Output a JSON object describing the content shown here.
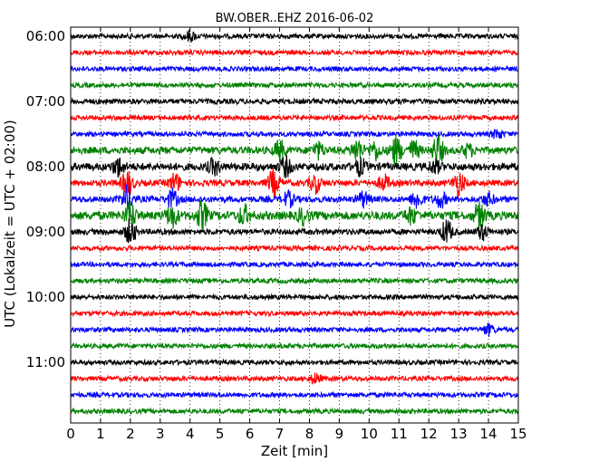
{
  "chart_data": {
    "type": "line",
    "title": "BW.OBER..EHZ 2016-06-02",
    "xlabel": "Zeit  [min]",
    "ylabel": "UTC (Lokalzeit = UTC + 02:00)",
    "xlim": [
      0,
      15
    ],
    "x_ticks": [
      "0",
      "1",
      "2",
      "3",
      "4",
      "5",
      "6",
      "7",
      "8",
      "9",
      "10",
      "11",
      "12",
      "13",
      "14",
      "15"
    ],
    "y_ticks": [
      "06:00",
      "07:00",
      "08:00",
      "09:00",
      "10:00",
      "11:00"
    ],
    "grid": true,
    "trace_colors": [
      "#000000",
      "#ff0000",
      "#0000ff",
      "#008000"
    ],
    "traces": [
      {
        "start": "06:00",
        "amplitude": 1.0,
        "bursts": [
          {
            "t": 4.0,
            "a": 1.6
          }
        ]
      },
      {
        "start": "06:15",
        "amplitude": 1.0,
        "bursts": []
      },
      {
        "start": "06:30",
        "amplitude": 1.0,
        "bursts": []
      },
      {
        "start": "06:45",
        "amplitude": 1.0,
        "bursts": []
      },
      {
        "start": "07:00",
        "amplitude": 1.1,
        "bursts": []
      },
      {
        "start": "07:15",
        "amplitude": 1.0,
        "bursts": []
      },
      {
        "start": "07:30",
        "amplitude": 1.0,
        "bursts": [
          {
            "t": 14.3,
            "a": 1.5
          }
        ]
      },
      {
        "start": "07:45",
        "amplitude": 1.5,
        "bursts": [
          {
            "t": 7.0,
            "a": 3.0
          },
          {
            "t": 8.3,
            "a": 2.5
          },
          {
            "t": 9.6,
            "a": 3.5
          },
          {
            "t": 10.2,
            "a": 3.0
          },
          {
            "t": 10.9,
            "a": 4.5
          },
          {
            "t": 11.5,
            "a": 3.0
          },
          {
            "t": 12.3,
            "a": 5.0
          },
          {
            "t": 13.3,
            "a": 2.0
          }
        ]
      },
      {
        "start": "08:00",
        "amplitude": 1.6,
        "bursts": [
          {
            "t": 1.6,
            "a": 3.0
          },
          {
            "t": 4.8,
            "a": 2.5
          },
          {
            "t": 7.2,
            "a": 3.0
          },
          {
            "t": 9.7,
            "a": 2.5
          },
          {
            "t": 12.2,
            "a": 2.0
          }
        ]
      },
      {
        "start": "08:15",
        "amplitude": 1.3,
        "bursts": [
          {
            "t": 1.9,
            "a": 4.0
          },
          {
            "t": 3.5,
            "a": 3.0
          },
          {
            "t": 6.8,
            "a": 4.5
          },
          {
            "t": 8.2,
            "a": 3.0
          },
          {
            "t": 10.5,
            "a": 2.5
          },
          {
            "t": 13.0,
            "a": 4.0
          }
        ]
      },
      {
        "start": "08:30",
        "amplitude": 1.3,
        "bursts": [
          {
            "t": 1.9,
            "a": 4.0
          },
          {
            "t": 3.4,
            "a": 3.0
          },
          {
            "t": 7.3,
            "a": 2.5
          },
          {
            "t": 9.8,
            "a": 2.5
          },
          {
            "t": 11.6,
            "a": 3.0
          },
          {
            "t": 12.4,
            "a": 2.5
          },
          {
            "t": 14.0,
            "a": 2.0
          }
        ]
      },
      {
        "start": "08:45",
        "amplitude": 1.8,
        "bursts": [
          {
            "t": 2.0,
            "a": 4.0
          },
          {
            "t": 3.4,
            "a": 3.5
          },
          {
            "t": 4.4,
            "a": 4.5
          },
          {
            "t": 5.8,
            "a": 3.0
          },
          {
            "t": 7.8,
            "a": 2.5
          },
          {
            "t": 11.4,
            "a": 2.5
          },
          {
            "t": 13.7,
            "a": 4.0
          }
        ]
      },
      {
        "start": "09:00",
        "amplitude": 1.2,
        "bursts": [
          {
            "t": 2.0,
            "a": 4.0
          },
          {
            "t": 12.6,
            "a": 4.0
          },
          {
            "t": 13.8,
            "a": 2.5
          }
        ]
      },
      {
        "start": "09:15",
        "amplitude": 1.0,
        "bursts": []
      },
      {
        "start": "09:30",
        "amplitude": 1.0,
        "bursts": []
      },
      {
        "start": "09:45",
        "amplitude": 1.0,
        "bursts": []
      },
      {
        "start": "10:00",
        "amplitude": 1.0,
        "bursts": []
      },
      {
        "start": "10:15",
        "amplitude": 1.0,
        "bursts": []
      },
      {
        "start": "10:30",
        "amplitude": 1.0,
        "bursts": [
          {
            "t": 14.0,
            "a": 1.8
          }
        ]
      },
      {
        "start": "10:45",
        "amplitude": 1.0,
        "bursts": []
      },
      {
        "start": "11:00",
        "amplitude": 1.0,
        "bursts": []
      },
      {
        "start": "11:15",
        "amplitude": 1.0,
        "bursts": [
          {
            "t": 8.2,
            "a": 1.6
          }
        ]
      },
      {
        "start": "11:30",
        "amplitude": 1.0,
        "bursts": []
      },
      {
        "start": "11:45",
        "amplitude": 1.0,
        "bursts": []
      }
    ]
  }
}
